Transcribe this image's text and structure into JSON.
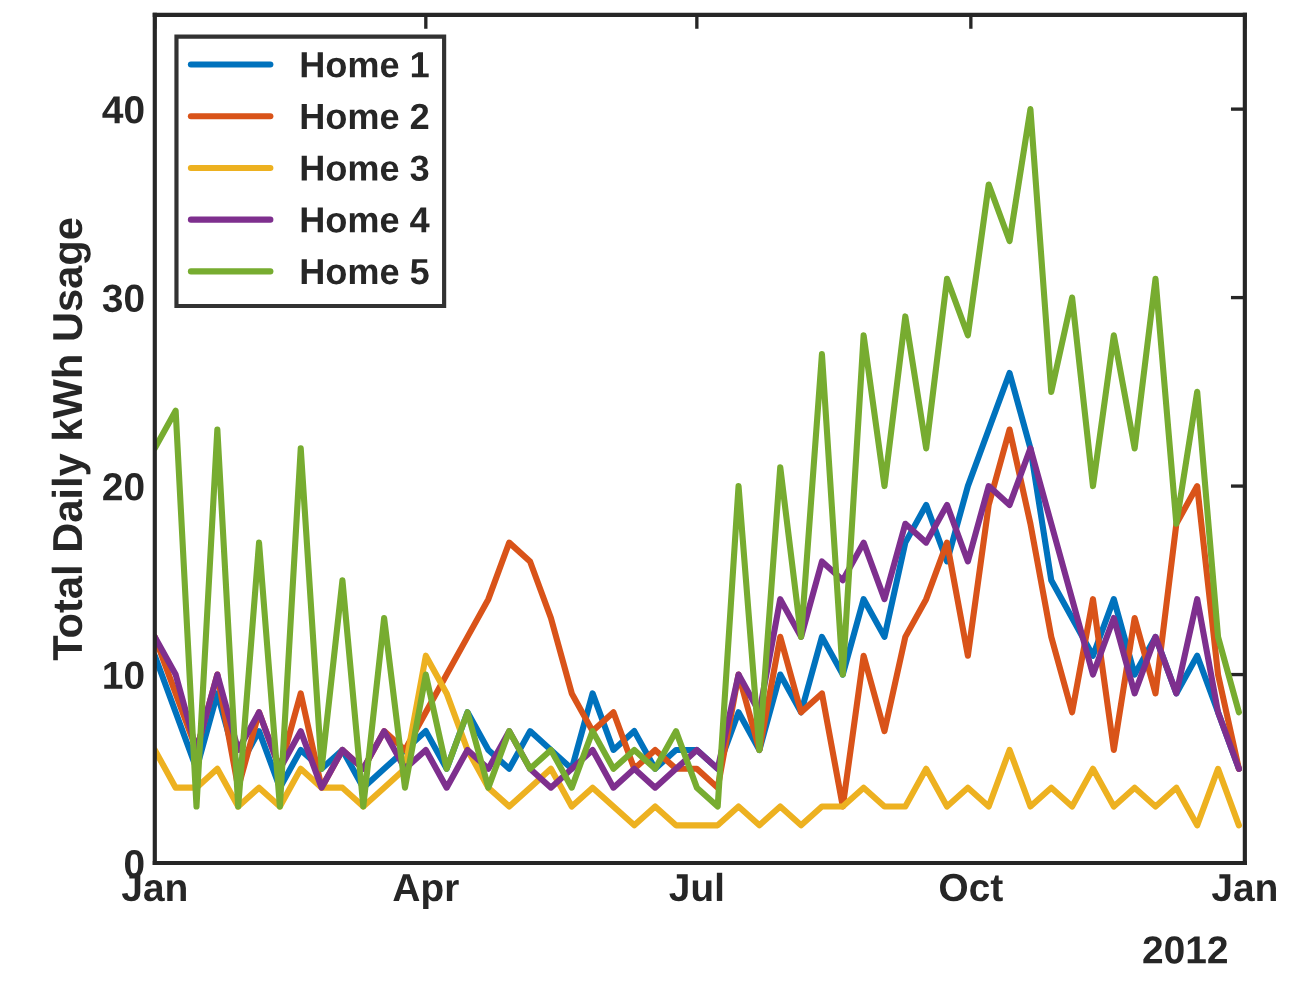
{
  "chart_data": {
    "type": "line",
    "ylabel": "Total Daily kWh Usage",
    "x": [
      "2012-01-01",
      "2012-01-08",
      "2012-01-15",
      "2012-01-22",
      "2012-01-29",
      "2012-02-05",
      "2012-02-12",
      "2012-02-19",
      "2012-02-26",
      "2012-03-04",
      "2012-03-11",
      "2012-03-18",
      "2012-03-25",
      "2012-04-01",
      "2012-04-08",
      "2012-04-15",
      "2012-04-22",
      "2012-04-29",
      "2012-05-06",
      "2012-05-13",
      "2012-05-20",
      "2012-05-27",
      "2012-06-03",
      "2012-06-10",
      "2012-06-17",
      "2012-06-24",
      "2012-07-01",
      "2012-07-08",
      "2012-07-15",
      "2012-07-22",
      "2012-07-29",
      "2012-08-05",
      "2012-08-12",
      "2012-08-19",
      "2012-08-26",
      "2012-09-02",
      "2012-09-09",
      "2012-09-16",
      "2012-09-23",
      "2012-09-30",
      "2012-10-07",
      "2012-10-14",
      "2012-10-21",
      "2012-10-28",
      "2012-11-04",
      "2012-11-11",
      "2012-11-18",
      "2012-11-25",
      "2012-12-02",
      "2012-12-09",
      "2012-12-16",
      "2012-12-23",
      "2012-12-30"
    ],
    "series": [
      {
        "name": "Home 1",
        "color": "#0072bd",
        "values": [
          11,
          8,
          5,
          9,
          5,
          7,
          4,
          6,
          5,
          6,
          4,
          5,
          6,
          7,
          5,
          8,
          6,
          5,
          7,
          6,
          5,
          9,
          6,
          7,
          5,
          6,
          6,
          5,
          8,
          6,
          10,
          8,
          12,
          10,
          14,
          12,
          17,
          19,
          16,
          20,
          23,
          26,
          22,
          15,
          13,
          11,
          14,
          10,
          12,
          9,
          11,
          8,
          5
        ]
      },
      {
        "name": "Home 2",
        "color": "#d95319",
        "values": [
          12,
          9,
          6,
          10,
          4,
          8,
          5,
          9,
          4,
          6,
          5,
          7,
          6,
          8,
          10,
          12,
          14,
          17,
          16,
          13,
          9,
          7,
          8,
          5,
          6,
          5,
          5,
          4,
          10,
          6,
          12,
          8,
          9,
          3,
          11,
          7,
          12,
          14,
          17,
          11,
          19,
          23,
          18,
          12,
          8,
          14,
          6,
          13,
          9,
          18,
          20,
          10,
          5
        ]
      },
      {
        "name": "Home 3",
        "color": "#edb120",
        "values": [
          6,
          4,
          4,
          5,
          3,
          4,
          3,
          5,
          4,
          4,
          3,
          4,
          5,
          11,
          9,
          6,
          4,
          3,
          4,
          5,
          3,
          4,
          3,
          2,
          3,
          2,
          2,
          2,
          3,
          2,
          3,
          2,
          3,
          3,
          4,
          3,
          3,
          5,
          3,
          4,
          3,
          6,
          3,
          4,
          3,
          5,
          3,
          4,
          3,
          4,
          2,
          5,
          2
        ]
      },
      {
        "name": "Home 4",
        "color": "#7e2f8e",
        "values": [
          12,
          10,
          6,
          10,
          6,
          8,
          5,
          7,
          4,
          6,
          5,
          7,
          5,
          6,
          4,
          6,
          5,
          7,
          5,
          4,
          5,
          6,
          4,
          5,
          4,
          5,
          6,
          5,
          10,
          8,
          14,
          12,
          16,
          15,
          17,
          14,
          18,
          17,
          19,
          16,
          20,
          19,
          22,
          18,
          14,
          10,
          13,
          9,
          12,
          9,
          14,
          8,
          5
        ]
      },
      {
        "name": "Home 5",
        "color": "#77ac30",
        "values": [
          22,
          24,
          3,
          23,
          3,
          17,
          3,
          22,
          5,
          15,
          3,
          13,
          4,
          10,
          5,
          8,
          4,
          7,
          5,
          6,
          4,
          7,
          5,
          6,
          5,
          7,
          4,
          3,
          20,
          6,
          21,
          12,
          27,
          10,
          28,
          20,
          29,
          22,
          31,
          28,
          36,
          33,
          40,
          25,
          30,
          20,
          28,
          22,
          31,
          18,
          25,
          12,
          8
        ]
      }
    ],
    "xlim": [
      "2012-01-01",
      "2013-01-01"
    ],
    "xticks": [
      {
        "value": "2012-01-01",
        "label": "Jan"
      },
      {
        "value": "2012-04-01",
        "label": "Apr"
      },
      {
        "value": "2012-07-01",
        "label": "Jul"
      },
      {
        "value": "2012-10-01",
        "label": "Oct"
      },
      {
        "value": "2013-01-01",
        "label": "Jan"
      }
    ],
    "ylim": [
      0,
      45
    ],
    "yticks": [
      0,
      10,
      20,
      30,
      40
    ],
    "annotations": [
      "2012"
    ],
    "legend": "top left"
  }
}
